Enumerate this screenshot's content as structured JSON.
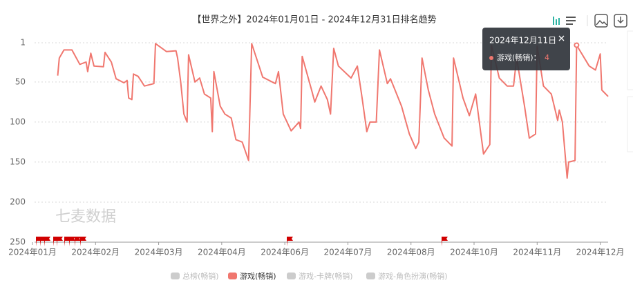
{
  "chart_data": {
    "type": "line",
    "title": "【世界之外】2024年01月01日 - 2024年12月31日排名趋势",
    "watermark": "七麦数据",
    "x": [
      "2024-01-17",
      "2024-01-18",
      "2024-01-21",
      "2024-01-26",
      "2024-01-31",
      "2024-02-04",
      "2024-02-05",
      "2024-02-07",
      "2024-02-09",
      "2024-02-15",
      "2024-02-16",
      "2024-02-20",
      "2024-02-23",
      "2024-02-28",
      "2024-03-01",
      "2024-03-02",
      "2024-03-04",
      "2024-03-05",
      "2024-03-08",
      "2024-03-12",
      "2024-03-18",
      "2024-03-19",
      "2024-03-26",
      "2024-04-01",
      "2024-04-02",
      "2024-04-04",
      "2024-04-06",
      "2024-04-08",
      "2024-04-09",
      "2024-04-13",
      "2024-04-16",
      "2024-04-19",
      "2024-04-23",
      "2024-04-24",
      "2024-04-25",
      "2024-04-29",
      "2024-05-02",
      "2024-05-06",
      "2024-05-09",
      "2024-05-13",
      "2024-05-17",
      "2024-05-19",
      "2024-05-26",
      "2024-06-03",
      "2024-06-05",
      "2024-06-08",
      "2024-06-13",
      "2024-06-18",
      "2024-06-19",
      "2024-06-20",
      "2024-06-26",
      "2024-06-28",
      "2024-07-02",
      "2024-07-06",
      "2024-07-08",
      "2024-07-10",
      "2024-07-13",
      "2024-07-21",
      "2024-07-25",
      "2024-07-28",
      "2024-07-31",
      "2024-08-02",
      "2024-08-06",
      "2024-08-08",
      "2024-08-13",
      "2024-08-15",
      "2024-08-22",
      "2024-08-27",
      "2024-08-31",
      "2024-09-02",
      "2024-09-04",
      "2024-09-08",
      "2024-09-12",
      "2024-09-18",
      "2024-09-23",
      "2024-09-24",
      "2024-09-30",
      "2024-10-04",
      "2024-10-08",
      "2024-10-13",
      "2024-10-17",
      "2024-10-18",
      "2024-10-23",
      "2024-10-28",
      "2024-11-01",
      "2024-11-03",
      "2024-11-08",
      "2024-11-11",
      "2024-11-15",
      "2024-11-16",
      "2024-11-20",
      "2024-11-25",
      "2024-11-29",
      "2024-11-30",
      "2024-12-02",
      "2024-12-05",
      "2024-12-06",
      "2024-12-10",
      "2024-12-11",
      "2024-12-19",
      "2024-12-23",
      "2024-12-26",
      "2024-12-27",
      "2024-12-31"
    ],
    "series": [
      {
        "name": "游戏(畅销)",
        "color": "#f0776f",
        "values": [
          42,
          20,
          10,
          10,
          28,
          25,
          37,
          14,
          30,
          31,
          13,
          25,
          46,
          51,
          48,
          70,
          72,
          40,
          43,
          55,
          52,
          2,
          12,
          11,
          20,
          50,
          90,
          100,
          16,
          50,
          45,
          65,
          70,
          112,
          37,
          80,
          90,
          95,
          122,
          125,
          148,
          2,
          44,
          52,
          37,
          90,
          111,
          100,
          108,
          18,
          60,
          75,
          55,
          72,
          90,
          8,
          30,
          45,
          30,
          70,
          112,
          100,
          100,
          10,
          52,
          46,
          80,
          115,
          133,
          125,
          20,
          60,
          90,
          120,
          130,
          20,
          70,
          92,
          65,
          140,
          128,
          4,
          45,
          55,
          55,
          20,
          80,
          120,
          115,
          5,
          55,
          65,
          98,
          85,
          100,
          170,
          150,
          148,
          4,
          30,
          35,
          15,
          60,
          68
        ]
      }
    ],
    "xlim": [
      "2024-01-01",
      "2024-12-31"
    ],
    "xticks": [
      {
        "value": "2024-01-01",
        "label": "2024年01月"
      },
      {
        "value": "2024-02-10",
        "label": "2024年02月"
      },
      {
        "value": "2024-03-21",
        "label": "2024年03月"
      },
      {
        "value": "2024-04-30",
        "label": "2024年04月"
      },
      {
        "value": "2024-06-09",
        "label": "2024年06月"
      },
      {
        "value": "2024-07-19",
        "label": "2024年07月"
      },
      {
        "value": "2024-08-28",
        "label": "2024年08月"
      },
      {
        "value": "2024-10-07",
        "label": "2024年10月"
      },
      {
        "value": "2024-11-16",
        "label": "2024年11月"
      },
      {
        "value": "2024-12-26",
        "label": "2024年12月"
      }
    ],
    "ylim": [
      1,
      250
    ],
    "y_inverted": true,
    "yticks": [
      1,
      50,
      100,
      150,
      200,
      250
    ],
    "grid": true,
    "legend": [
      {
        "name": "总榜(畅销)",
        "active": false
      },
      {
        "name": "游戏(畅销)",
        "active": true
      },
      {
        "name": "游戏-卡牌(畅销)",
        "active": false
      },
      {
        "name": "游戏-角色扮演(畅销)",
        "active": false
      }
    ],
    "tooltip": {
      "title": "2024年12月11日",
      "label": "游戏(畅销)：",
      "value": 4,
      "point": 98
    }
  }
}
